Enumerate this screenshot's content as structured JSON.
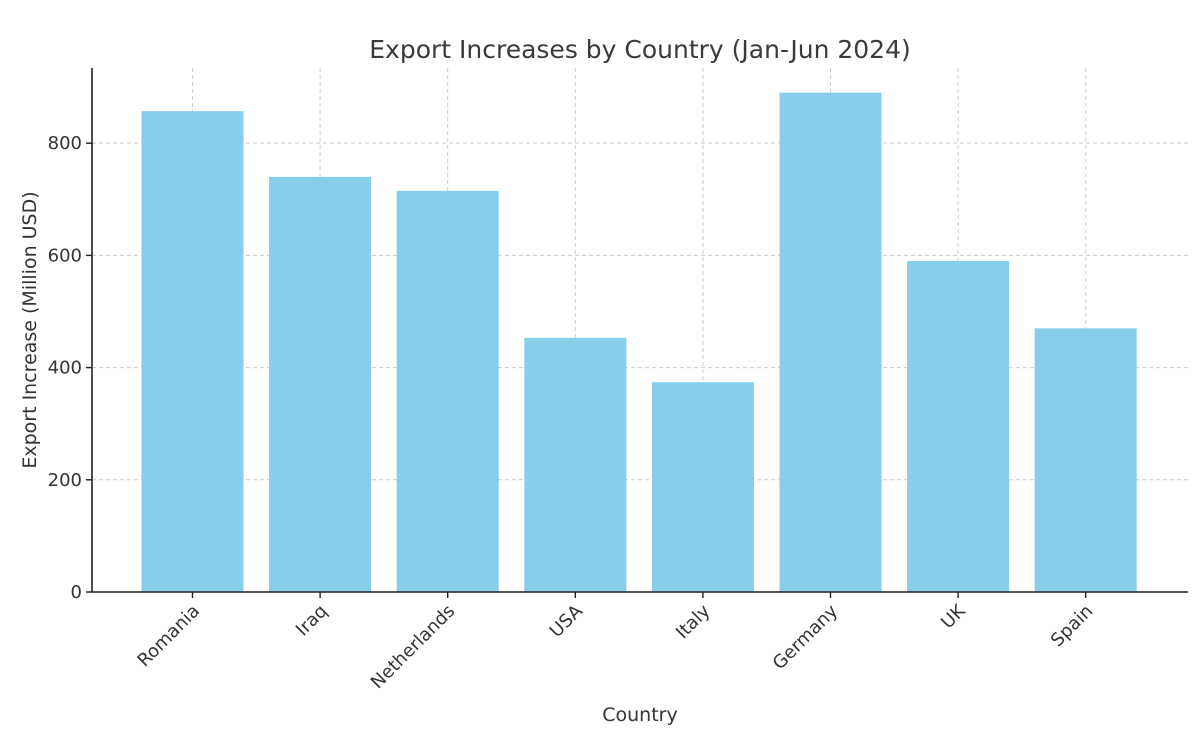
{
  "chart_data": {
    "type": "bar",
    "title": "Export Increases by Country (Jan-Jun 2024)",
    "xlabel": "Country",
    "ylabel": "Export Increase (Million USD)",
    "categories": [
      "Romania",
      "Iraq",
      "Netherlands",
      "USA",
      "Italy",
      "Germany",
      "UK",
      "Spain"
    ],
    "values": [
      857,
      740,
      715,
      453,
      374,
      890,
      590,
      470
    ],
    "ylim": [
      0,
      934
    ],
    "yticks": [
      0,
      200,
      400,
      600,
      800
    ],
    "grid": true,
    "bar_color": "#87CEEB",
    "legend": "none"
  }
}
